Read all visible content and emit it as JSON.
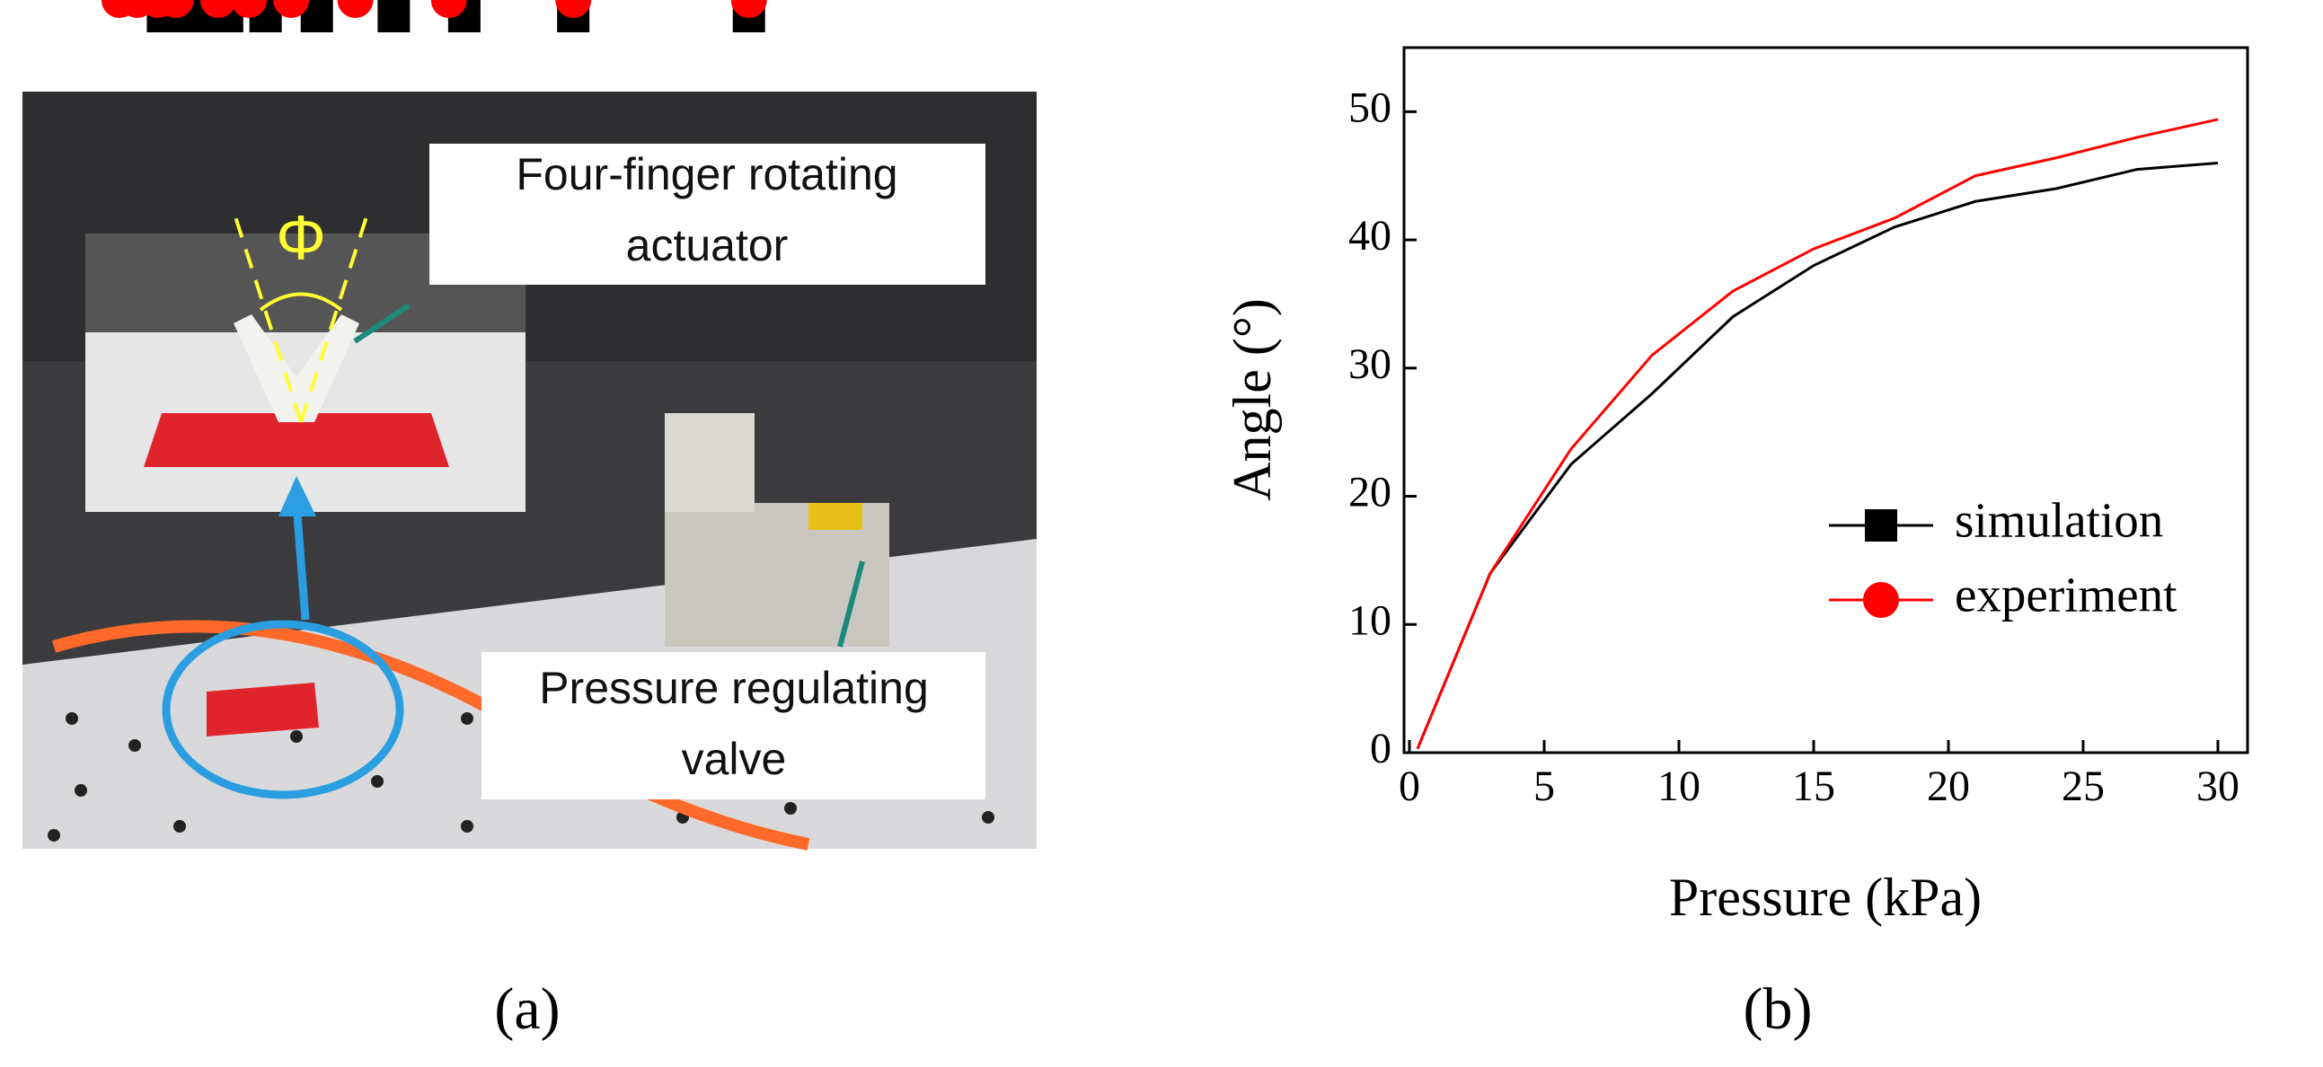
{
  "panel_a": {
    "labels": [
      {
        "lines": [
          "Four-finger rotating",
          "actuator"
        ]
      },
      {
        "lines": [
          "Pressure regulating",
          "valve"
        ]
      }
    ],
    "angle_symbol": "Φ",
    "caption": "(a)"
  },
  "chart_data": {
    "type": "line",
    "caption": "(b)",
    "x_label": "Pressure (kPa)",
    "y_label": "Angle (°)",
    "x": [
      0.3,
      3,
      6,
      9,
      12,
      15,
      18,
      21,
      24,
      27,
      30
    ],
    "series": [
      {
        "name": "simulation",
        "color": "#000000",
        "marker": "square",
        "values": [
          0.3,
          14,
          22.5,
          28,
          34,
          38,
          41,
          43,
          44,
          45.5,
          46
        ]
      },
      {
        "name": "experiment",
        "color": "#ff0000",
        "marker": "circle",
        "values": [
          0.3,
          14,
          23.7,
          31,
          36,
          39.3,
          41.7,
          45,
          46.4,
          48,
          49.4
        ]
      }
    ],
    "xlim": [
      -0.2,
      31.1
    ],
    "ylim": [
      0,
      55
    ],
    "xticks": [
      0,
      5,
      10,
      15,
      20,
      25,
      30
    ],
    "yticks": [
      0,
      10,
      20,
      30,
      40,
      50
    ],
    "legend": "right",
    "grid": false
  }
}
